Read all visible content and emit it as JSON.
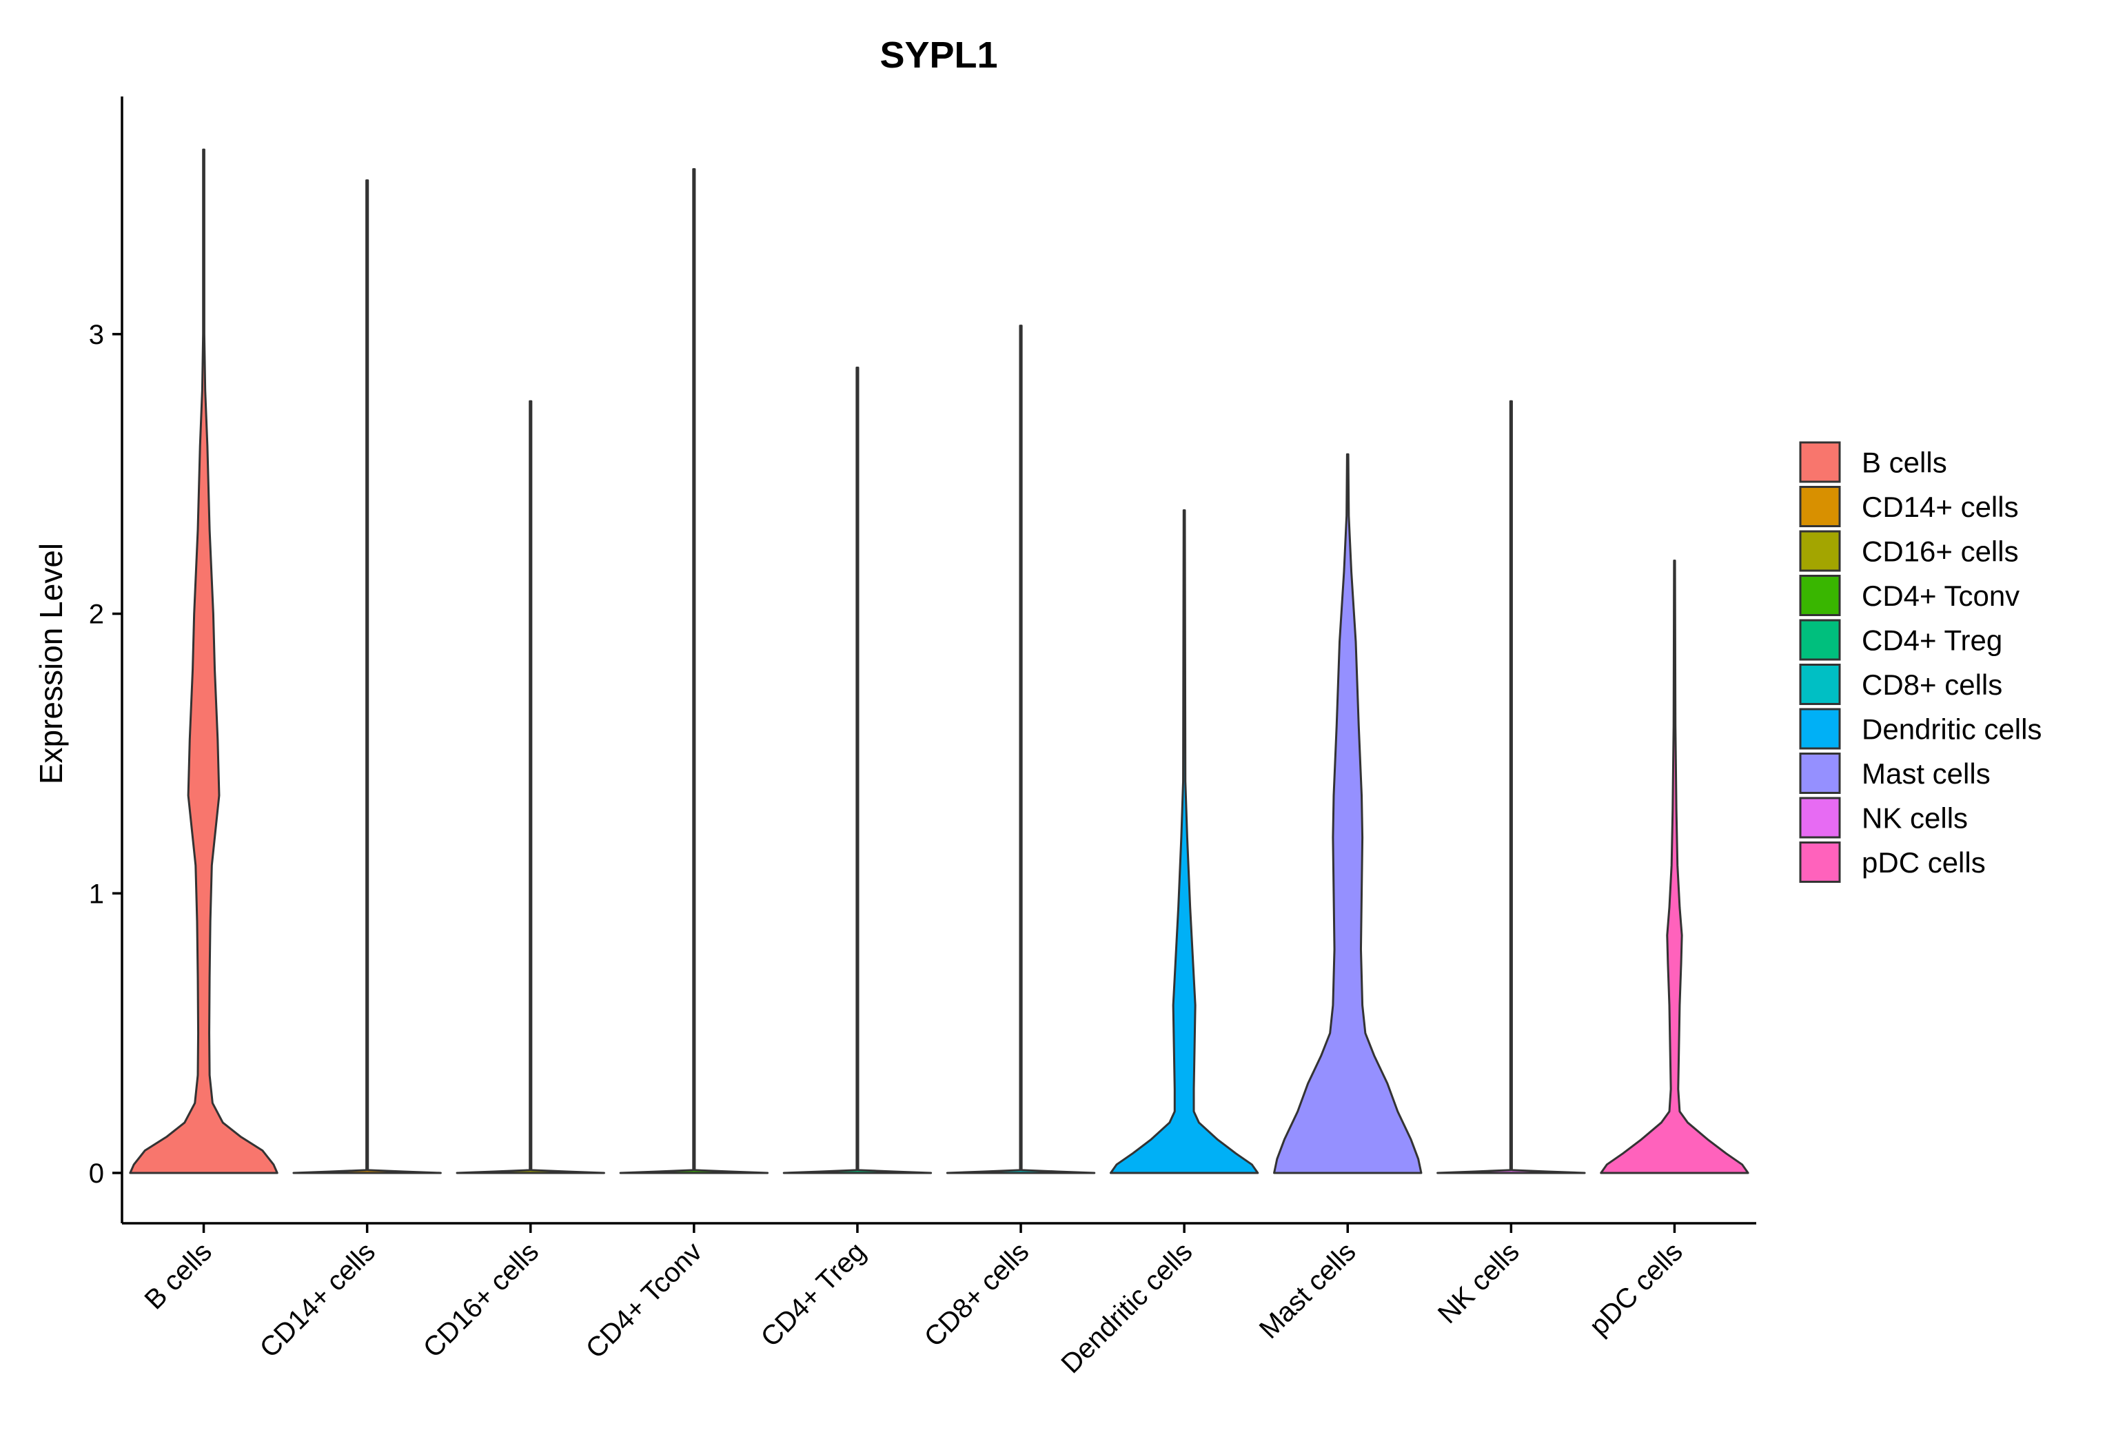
{
  "chart_data": {
    "type": "violin",
    "title": "SYPL1",
    "xlabel": "",
    "ylabel": "Expression Level",
    "ylim": [
      -0.18,
      3.85
    ],
    "yticks": [
      0,
      1,
      2,
      3
    ],
    "ytick_labels": [
      "0",
      "1",
      "2",
      "3"
    ],
    "legend_position": "right",
    "categories": [
      "B cells",
      "CD14+ cells",
      "CD16+ cells",
      "CD4+ Tconv",
      "CD4+ Treg",
      "CD8+ cells",
      "Dendritic cells",
      "Mast cells",
      "NK cells",
      "pDC cells"
    ],
    "series": [
      {
        "name": "B cells",
        "color": "#F8766D",
        "max": 3.66,
        "density": [
          [
            0,
            1.0
          ],
          [
            0.03,
            0.95
          ],
          [
            0.08,
            0.8
          ],
          [
            0.13,
            0.5
          ],
          [
            0.18,
            0.26
          ],
          [
            0.25,
            0.12
          ],
          [
            0.35,
            0.08
          ],
          [
            0.5,
            0.075
          ],
          [
            0.7,
            0.08
          ],
          [
            0.9,
            0.09
          ],
          [
            1.1,
            0.11
          ],
          [
            1.35,
            0.21
          ],
          [
            1.55,
            0.19
          ],
          [
            1.8,
            0.15
          ],
          [
            2.0,
            0.13
          ],
          [
            2.3,
            0.08
          ],
          [
            2.6,
            0.05
          ],
          [
            2.8,
            0.02
          ],
          [
            3.0,
            0.008
          ],
          [
            3.66,
            0.008
          ]
        ]
      },
      {
        "name": "CD14+ cells",
        "color": "#D89000",
        "max": 3.55,
        "density": [
          [
            0,
            1.0
          ],
          [
            0.005,
            0.5
          ],
          [
            0.01,
            0.01
          ],
          [
            3.55,
            0.01
          ]
        ]
      },
      {
        "name": "CD16+ cells",
        "color": "#A3A500",
        "max": 2.76,
        "density": [
          [
            0,
            1.0
          ],
          [
            0.005,
            0.5
          ],
          [
            0.01,
            0.01
          ],
          [
            2.76,
            0.01
          ]
        ]
      },
      {
        "name": "CD4+ Tconv",
        "color": "#39B600",
        "max": 3.59,
        "density": [
          [
            0,
            1.0
          ],
          [
            0.005,
            0.5
          ],
          [
            0.01,
            0.01
          ],
          [
            3.59,
            0.01
          ]
        ]
      },
      {
        "name": "CD4+ Treg",
        "color": "#00BF7D",
        "max": 2.88,
        "density": [
          [
            0,
            1.0
          ],
          [
            0.005,
            0.5
          ],
          [
            0.01,
            0.01
          ],
          [
            2.88,
            0.01
          ]
        ]
      },
      {
        "name": "CD8+ cells",
        "color": "#00BFC4",
        "max": 3.03,
        "density": [
          [
            0,
            1.0
          ],
          [
            0.005,
            0.5
          ],
          [
            0.01,
            0.01
          ],
          [
            3.03,
            0.01
          ]
        ]
      },
      {
        "name": "Dendritic cells",
        "color": "#00B0F6",
        "max": 2.37,
        "density": [
          [
            0,
            1.0
          ],
          [
            0.03,
            0.92
          ],
          [
            0.07,
            0.7
          ],
          [
            0.12,
            0.45
          ],
          [
            0.18,
            0.2
          ],
          [
            0.22,
            0.13
          ],
          [
            0.3,
            0.13
          ],
          [
            0.45,
            0.14
          ],
          [
            0.6,
            0.15
          ],
          [
            0.75,
            0.12
          ],
          [
            0.95,
            0.08
          ],
          [
            1.2,
            0.04
          ],
          [
            1.4,
            0.015
          ],
          [
            2.37,
            0.008
          ]
        ]
      },
      {
        "name": "Mast cells",
        "color": "#9590FF",
        "max": 2.57,
        "density": [
          [
            0,
            1.0
          ],
          [
            0.05,
            0.96
          ],
          [
            0.12,
            0.86
          ],
          [
            0.22,
            0.68
          ],
          [
            0.32,
            0.54
          ],
          [
            0.42,
            0.36
          ],
          [
            0.5,
            0.24
          ],
          [
            0.6,
            0.2
          ],
          [
            0.8,
            0.18
          ],
          [
            1.0,
            0.19
          ],
          [
            1.2,
            0.2
          ],
          [
            1.35,
            0.19
          ],
          [
            1.6,
            0.15
          ],
          [
            1.9,
            0.11
          ],
          [
            2.15,
            0.05
          ],
          [
            2.35,
            0.015
          ],
          [
            2.57,
            0.008
          ]
        ]
      },
      {
        "name": "NK cells",
        "color": "#E76BF3",
        "max": 2.76,
        "density": [
          [
            0,
            1.0
          ],
          [
            0.005,
            0.5
          ],
          [
            0.01,
            0.01
          ],
          [
            2.76,
            0.01
          ]
        ]
      },
      {
        "name": "pDC cells",
        "color": "#FF62BC",
        "max": 2.19,
        "density": [
          [
            0,
            1.0
          ],
          [
            0.03,
            0.92
          ],
          [
            0.07,
            0.7
          ],
          [
            0.12,
            0.45
          ],
          [
            0.18,
            0.18
          ],
          [
            0.22,
            0.07
          ],
          [
            0.3,
            0.05
          ],
          [
            0.45,
            0.06
          ],
          [
            0.6,
            0.07
          ],
          [
            0.75,
            0.09
          ],
          [
            0.85,
            0.1
          ],
          [
            0.95,
            0.07
          ],
          [
            1.1,
            0.04
          ],
          [
            1.3,
            0.025
          ],
          [
            1.6,
            0.012
          ],
          [
            2.19,
            0.006
          ]
        ]
      }
    ]
  }
}
